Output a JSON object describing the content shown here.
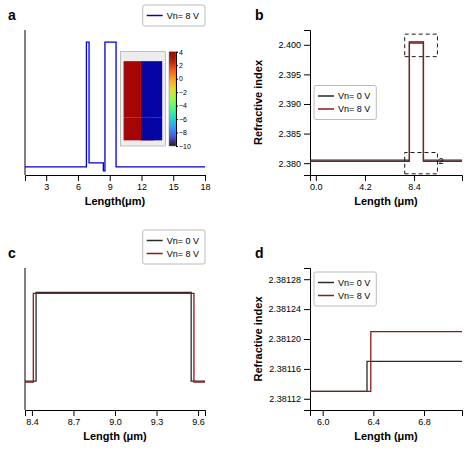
{
  "chart_data": [
    {
      "type": "line",
      "title": "a",
      "xlabel": "Length(μm)",
      "xlim": [
        1,
        18
      ],
      "ylim": [
        -13,
        5
      ],
      "xticks": [
        3,
        6,
        9,
        12,
        15,
        18
      ],
      "tick_labels": "x",
      "grid": false,
      "legend": "upper right",
      "series": [
        {
          "name": "Vn= 8 V",
          "color": "#0000cc",
          "x": [
            1.0,
            6.8,
            6.8,
            7.05,
            7.05,
            8.4,
            8.4,
            8.55,
            8.55,
            9.6,
            9.6,
            18.0
          ],
          "values": [
            -12.0,
            -12.0,
            3.5,
            3.5,
            -11.5,
            -11.5,
            -12.5,
            -12.5,
            3.5,
            3.5,
            -12.0,
            -12.0
          ]
        }
      ],
      "colorbar_range": [
        -10,
        4
      ],
      "colorbar_ticks": [
        4,
        2,
        0,
        {
          "value": -2,
          "label": "−2"
        },
        {
          "value": -4,
          "label": "−4"
        },
        {
          "value": -6,
          "label": "−6"
        },
        {
          "value": -8,
          "label": "−8"
        },
        {
          "value": -10,
          "label": "−10"
        }
      ]
    },
    {
      "type": "line",
      "title": "b",
      "xlabel": "Length (μm)",
      "ylabel": "Refractive index",
      "xlim": [
        -0.5,
        12.5
      ],
      "ylim": [
        2.378,
        2.4025
      ],
      "xticks": [
        {
          "value": 0,
          "label": "0.0"
        },
        4.2,
        8.4
      ],
      "yticks": [
        {
          "value": 2.38,
          "label": "2.380"
        },
        2.385,
        {
          "value": 2.39,
          "label": "2.390"
        },
        2.395,
        {
          "value": 2.4,
          "label": "2.400"
        }
      ],
      "grid": false,
      "legend": "center left",
      "series": [
        {
          "name": "Vn= 0 V",
          "color": "#2a2a2a",
          "x": [
            -0.5,
            8.0,
            8.0,
            9.2,
            9.2,
            12.5
          ],
          "values": [
            2.3805,
            2.3805,
            2.4005,
            2.4005,
            2.3805,
            2.3805
          ]
        },
        {
          "name": "Vn= 8 V",
          "color": "#8b1a1a",
          "x": [
            -0.5,
            8.0,
            8.0,
            9.2,
            9.2,
            12.5
          ],
          "values": [
            2.3803,
            2.3803,
            2.4003,
            2.4003,
            2.3803,
            2.3803
          ]
        },
        {
          "color": "#000000",
          "line_style": "dashed",
          "x": [
            7.6,
            10.4,
            10.4,
            7.6,
            7.6
          ],
          "values": [
            2.3782,
            2.3782,
            2.3818,
            2.3818,
            2.3782
          ]
        },
        {
          "color": "#000000",
          "line_style": "dashed",
          "x": [
            7.6,
            10.4,
            10.4,
            7.6,
            7.6
          ],
          "values": [
            2.398,
            2.398,
            2.4018,
            2.4018,
            2.398
          ]
        }
      ],
      "annotations": [
        {
          "text": "2",
          "x": 10.5,
          "y": 2.3798
        }
      ]
    },
    {
      "type": "line",
      "title": "c",
      "xlabel": "Length (μm)",
      "xlim": [
        8.35,
        9.65
      ],
      "ylim": [
        2.374,
        2.406
      ],
      "xticks": [
        8.4,
        8.7,
        {
          "value": 9.0,
          "label": "9.0"
        },
        9.3,
        9.6
      ],
      "tick_labels": "x",
      "grid": false,
      "legend": "upper right",
      "series": [
        {
          "name": "Vn= 0 V",
          "color": "#2a2a2a",
          "x": [
            8.35,
            8.43,
            8.43,
            9.55,
            9.55,
            9.65
          ],
          "values": [
            2.3805,
            2.3805,
            2.4005,
            2.4005,
            2.3805,
            2.3805
          ]
        },
        {
          "name": "Vn= 8 V",
          "color": "#8b1a1a",
          "x": [
            8.35,
            8.41,
            8.41,
            9.57,
            9.57,
            9.65
          ],
          "values": [
            2.3803,
            2.3803,
            2.4003,
            2.4003,
            2.3803,
            2.3803
          ]
        }
      ]
    },
    {
      "type": "line",
      "title": "d",
      "xlabel": "Length (μm)",
      "ylabel": "Refractive index",
      "xlim": [
        5.9,
        7.1
      ],
      "ylim": [
        2.381105,
        2.381295
      ],
      "xticks": [
        {
          "value": 6.0,
          "label": "6.0"
        },
        6.4,
        6.8
      ],
      "yticks": [
        2.38112,
        2.38116,
        {
          "value": 2.3812,
          "label": "2.38120"
        },
        2.38124,
        2.38128
      ],
      "grid": false,
      "legend": "upper left",
      "series": [
        {
          "name": "Vn= 0 V",
          "color": "#2a2a2a",
          "x": [
            5.9,
            6.35,
            6.35,
            7.1
          ],
          "values": [
            2.38113,
            2.38113,
            2.38117,
            2.38117
          ]
        },
        {
          "name": "Vn= 8 V",
          "color": "#8b1a1a",
          "x": [
            5.9,
            6.38,
            6.38,
            7.1
          ],
          "values": [
            2.38113,
            2.38113,
            2.38121,
            2.38121
          ]
        }
      ]
    }
  ]
}
